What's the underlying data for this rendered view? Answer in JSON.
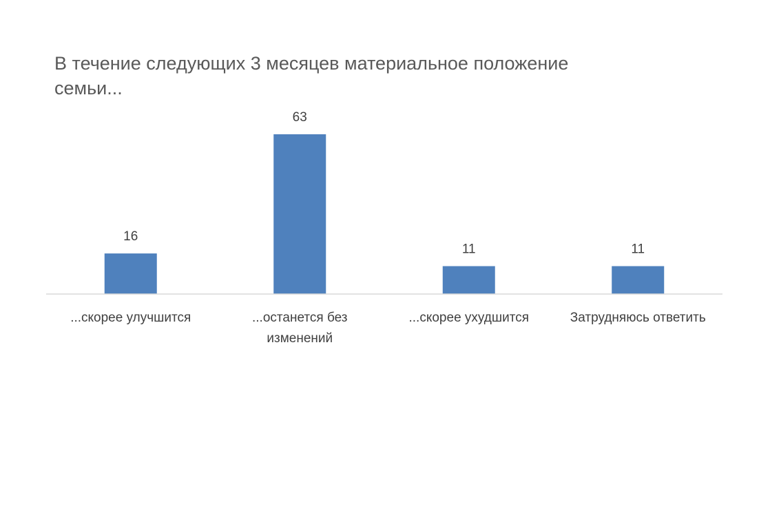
{
  "chart_data": {
    "type": "bar",
    "title": "В течение следующих 3 месяцев материальное положение семьи...",
    "categories": [
      [
        "...скорее улучшится"
      ],
      [
        "...останется без",
        "изменений"
      ],
      [
        "...скорее ухудшится"
      ],
      [
        "Затрудняюсь ответить"
      ]
    ],
    "values": [
      16,
      63,
      11,
      11
    ],
    "xlabel": "",
    "ylabel": "",
    "ylim": [
      0,
      63
    ],
    "grid": false,
    "legend": "none",
    "bar_color": "#4f81bd",
    "axis_color": "#d9d9d9"
  }
}
